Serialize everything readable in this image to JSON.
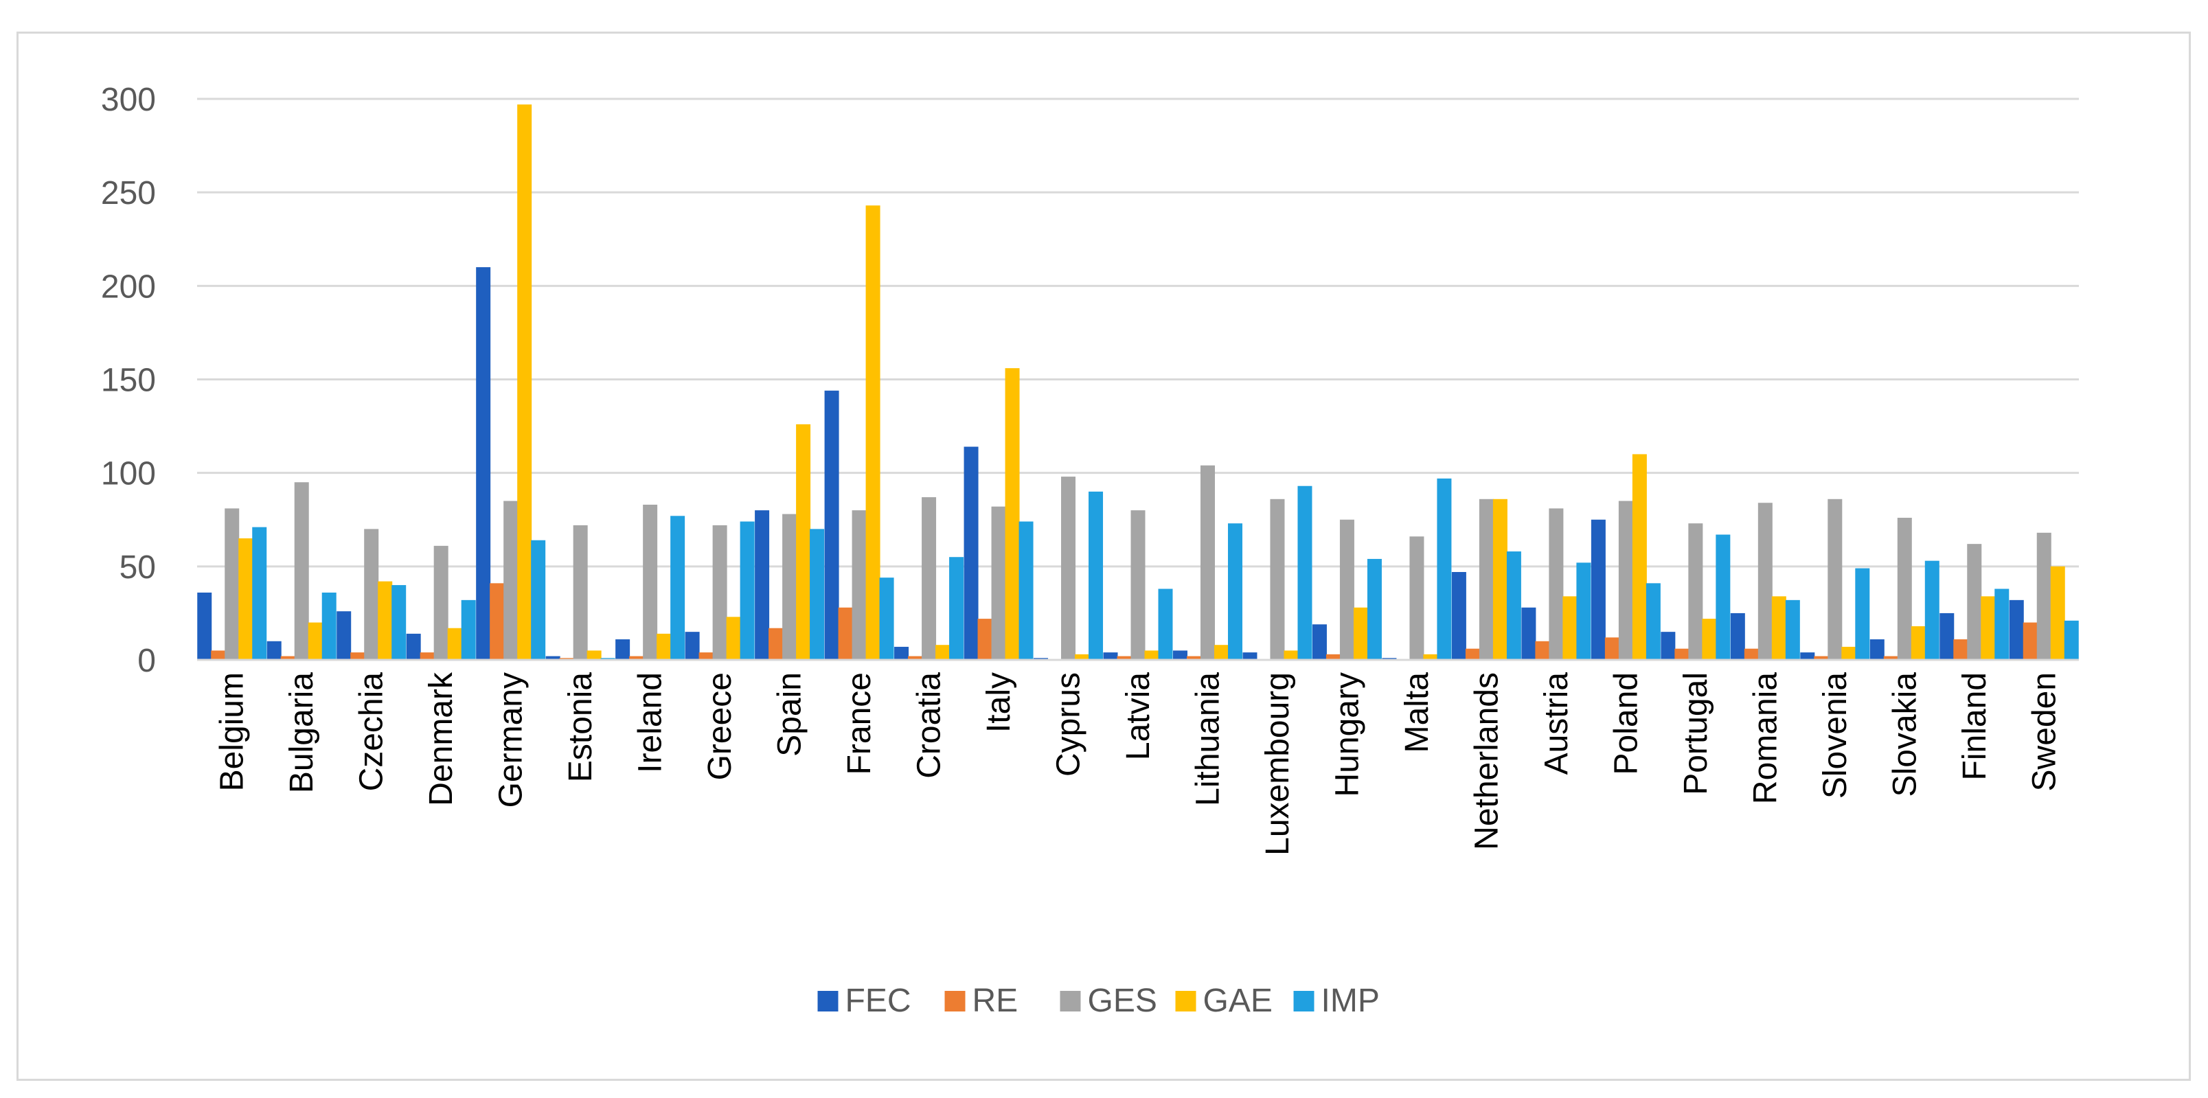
{
  "chart_data": {
    "type": "bar",
    "title": "",
    "xlabel": "",
    "ylabel": "",
    "ylim": [
      0,
      300
    ],
    "yticks": [
      0,
      50,
      100,
      150,
      200,
      250,
      300
    ],
    "grid": true,
    "legend_position": "bottom",
    "categories": [
      "Belgium",
      "Bulgaria",
      "Czechia",
      "Denmark",
      "Germany",
      "Estonia",
      "Ireland",
      "Greece",
      "Spain",
      "France",
      "Croatia",
      "Italy",
      "Cyprus",
      "Latvia",
      "Lithuania",
      "Luxembourg",
      "Hungary",
      "Malta",
      "Netherlands",
      "Austria",
      "Poland",
      "Portugal",
      "Romania",
      "Slovenia",
      "Slovakia",
      "Finland",
      "Sweden"
    ],
    "series": [
      {
        "name": "FEC",
        "color": "#1f5fbf",
        "values": [
          36,
          10,
          26,
          14,
          210,
          2,
          11,
          15,
          80,
          144,
          7,
          114,
          1,
          4,
          5,
          4,
          19,
          1,
          47,
          28,
          75,
          15,
          25,
          4,
          11,
          25,
          32
        ]
      },
      {
        "name": "RE",
        "color": "#ed7d31",
        "values": [
          5,
          2,
          4,
          4,
          41,
          1,
          2,
          4,
          17,
          28,
          2,
          22,
          0.5,
          2,
          2,
          0.5,
          3,
          0.3,
          6,
          10,
          12,
          6,
          6,
          2,
          2,
          11,
          20
        ]
      },
      {
        "name": "GES",
        "color": "#a5a5a5",
        "values": [
          81,
          95,
          70,
          61,
          85,
          72,
          83,
          72,
          78,
          80,
          87,
          82,
          98,
          80,
          104,
          86,
          75,
          66,
          86,
          81,
          85,
          73,
          84,
          86,
          76,
          62,
          68
        ]
      },
      {
        "name": "GAE",
        "color": "#ffc000",
        "values": [
          65,
          20,
          42,
          17,
          297,
          5,
          14,
          23,
          126,
          243,
          8,
          156,
          3,
          5,
          8,
          5,
          28,
          3,
          86,
          34,
          110,
          22,
          34,
          7,
          18,
          34,
          50
        ]
      },
      {
        "name": "IMP",
        "color": "#20a0e0",
        "values": [
          71,
          36,
          40,
          32,
          64,
          1,
          77,
          74,
          70,
          44,
          55,
          74,
          90,
          38,
          73,
          93,
          54,
          97,
          58,
          52,
          41,
          67,
          32,
          49,
          53,
          38,
          21
        ]
      }
    ]
  }
}
